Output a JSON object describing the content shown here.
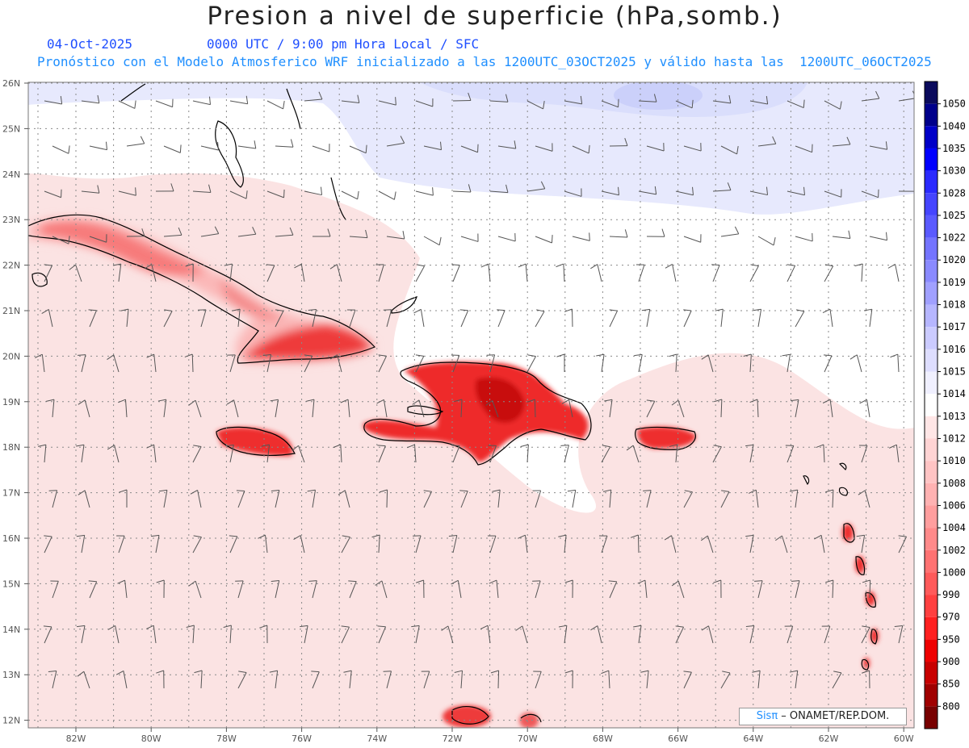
{
  "header": {
    "title": "Presion a nivel de superficie (hPa,somb.)",
    "date": "04-Oct-2025",
    "time_line": "0000 UTC / 9:00 pm Hora Local / SFC",
    "model_line": "Pronóstico con el Modelo Atmosferico WRF inicializado a las 1200UTC_03OCT2025 y válido hasta las  1200UTC_06OCT2025"
  },
  "map": {
    "lat_labels": [
      "26N",
      "25N",
      "24N",
      "23N",
      "22N",
      "21N",
      "20N",
      "19N",
      "18N",
      "17N",
      "16N",
      "15N",
      "14N",
      "13N",
      "12N"
    ],
    "lon_labels": [
      "82W",
      "80W",
      "78W",
      "76W",
      "74W",
      "72W",
      "70W",
      "68W",
      "66W",
      "64W",
      "62W",
      "60W"
    ]
  },
  "colorbar": {
    "levels": [
      "1050",
      "1040",
      "1035",
      "1030",
      "1028",
      "1025",
      "1022",
      "1020",
      "1019",
      "1018",
      "1017",
      "1016",
      "1015",
      "1014",
      "1013",
      "1012",
      "1010",
      "1008",
      "1006",
      "1004",
      "1002",
      "1000",
      "990",
      "970",
      "950",
      "900",
      "850",
      "800"
    ],
    "colors": [
      "#0a0a5c",
      "#00008b",
      "#0000c8",
      "#0000ff",
      "#2a2aff",
      "#4545ff",
      "#5a5aff",
      "#7474ff",
      "#8a8aff",
      "#a0a0ff",
      "#b6b6ff",
      "#cbcbff",
      "#dedeff",
      "#f0f0ff",
      "#ffffff",
      "#ffe6e6",
      "#ffd4d4",
      "#ffc4c4",
      "#ffb2b2",
      "#ff9e9e",
      "#ff8a8a",
      "#ff7272",
      "#ff5a5a",
      "#ff4040",
      "#ff2020",
      "#ee0000",
      "#c80000",
      "#a00000",
      "#780000"
    ]
  },
  "credit": {
    "sis": "Sisπ",
    "rest": " – ONAMET/REP.DOM."
  }
}
